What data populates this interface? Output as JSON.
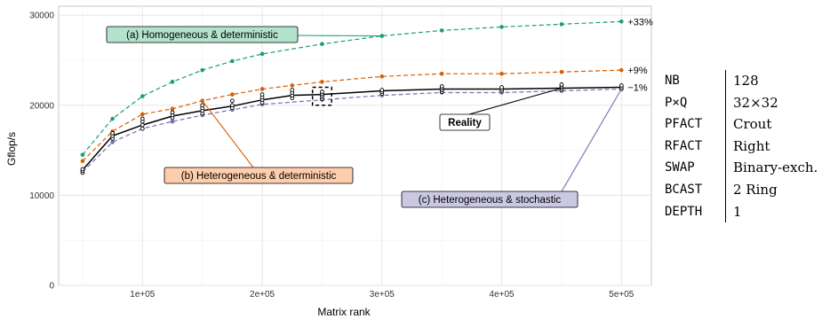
{
  "chart_data": {
    "type": "line",
    "xlabel": "Matrix rank",
    "ylabel": "Gflop/s",
    "xlim": [
      30000,
      525000
    ],
    "ylim": [
      0,
      31000
    ],
    "x_ticks": [
      {
        "value": 100000,
        "label": "1e+05"
      },
      {
        "value": 200000,
        "label": "2e+05"
      },
      {
        "value": 300000,
        "label": "3e+05"
      },
      {
        "value": 400000,
        "label": "4e+05"
      },
      {
        "value": 500000,
        "label": "5e+05"
      }
    ],
    "y_ticks": [
      {
        "value": 0,
        "label": "0"
      },
      {
        "value": 10000,
        "label": "10000"
      },
      {
        "value": 20000,
        "label": "20000"
      },
      {
        "value": 30000,
        "label": "30000"
      }
    ],
    "grid": true,
    "series": [
      {
        "name": "(a) Homogeneous & deterministic",
        "color": "#1b9e77",
        "style": "dashed",
        "x": [
          50000,
          75000,
          100000,
          125000,
          150000,
          175000,
          200000,
          250000,
          300000,
          350000,
          400000,
          450000,
          500000
        ],
        "y": [
          14500,
          18500,
          21000,
          22600,
          23900,
          24900,
          25700,
          26800,
          27700,
          28300,
          28700,
          29000,
          29300
        ],
        "annotation_text": "(a) Homogeneous & deterministic",
        "end_label": "+33%"
      },
      {
        "name": "(b) Heterogeneous & deterministic",
        "color": "#d95f02",
        "style": "dashed",
        "x": [
          50000,
          75000,
          100000,
          125000,
          150000,
          175000,
          200000,
          225000,
          250000,
          300000,
          350000,
          400000,
          450000,
          500000
        ],
        "y": [
          13800,
          17100,
          19000,
          19600,
          20500,
          21200,
          21800,
          22200,
          22600,
          23200,
          23500,
          23500,
          23700,
          23900
        ],
        "annotation_text": "(b) Heterogeneous & deterministic",
        "end_label": "+9%"
      },
      {
        "name": "Reality",
        "color": "#000000",
        "style": "solid",
        "x": [
          50000,
          75000,
          100000,
          125000,
          150000,
          175000,
          200000,
          225000,
          250000,
          300000,
          350000,
          400000,
          450000,
          500000
        ],
        "y": [
          12800,
          16600,
          17800,
          18800,
          19400,
          19900,
          20600,
          21100,
          21200,
          21600,
          21800,
          21800,
          21900,
          22000
        ],
        "annotation_text": "Reality",
        "end_label": "−1%"
      },
      {
        "name": "(c) Heterogeneous & stochastic",
        "color": "#7570b3",
        "style": "dashed",
        "x": [
          50000,
          75000,
          100000,
          125000,
          150000,
          175000,
          200000,
          250000,
          300000,
          350000,
          400000,
          450000,
          500000
        ],
        "y": [
          12600,
          15900,
          17400,
          18200,
          18900,
          19500,
          20100,
          20600,
          21100,
          21400,
          21400,
          21600,
          21800
        ],
        "annotation_text": "(c) Heterogeneous & stochastic"
      }
    ],
    "reality_points": [
      {
        "x": 50000,
        "y": [
          12500,
          12700,
          12900
        ]
      },
      {
        "x": 75000,
        "y": [
          16300,
          16600,
          16900
        ]
      },
      {
        "x": 100000,
        "y": [
          17400,
          17800,
          18200,
          18500
        ]
      },
      {
        "x": 125000,
        "y": [
          18600,
          18900,
          19200
        ]
      },
      {
        "x": 150000,
        "y": [
          19100,
          19400,
          19700,
          20000
        ]
      },
      {
        "x": 175000,
        "y": [
          19700,
          20000,
          20500
        ]
      },
      {
        "x": 200000,
        "y": [
          20300,
          20600,
          20900,
          21200
        ]
      },
      {
        "x": 225000,
        "y": [
          20800,
          21100,
          21400,
          21700
        ]
      },
      {
        "x": 250000,
        "y": [
          20700,
          20900,
          21100,
          21300,
          21500
        ]
      },
      {
        "x": 300000,
        "y": [
          21300,
          21500,
          21700
        ]
      },
      {
        "x": 350000,
        "y": [
          21500,
          21700,
          21900,
          22100
        ]
      },
      {
        "x": 400000,
        "y": [
          21600,
          21800,
          22000
        ]
      },
      {
        "x": 450000,
        "y": [
          21700,
          21900,
          22100,
          22300
        ]
      },
      {
        "x": 500000,
        "y": [
          21800,
          22000,
          22200
        ]
      }
    ],
    "highlight_box": {
      "x_min": 242000,
      "x_max": 258000,
      "y_min": 20000,
      "y_max": 22000
    }
  },
  "params": [
    {
      "key": "NB",
      "value": "128"
    },
    {
      "key": "P×Q",
      "value": "32×32"
    },
    {
      "key": "PFACT",
      "value": "Crout"
    },
    {
      "key": "RFACT",
      "value": "Right"
    },
    {
      "key": "SWAP",
      "value": "Binary-exch."
    },
    {
      "key": "BCAST",
      "value": "2 Ring"
    },
    {
      "key": "DEPTH",
      "value": "1"
    }
  ]
}
